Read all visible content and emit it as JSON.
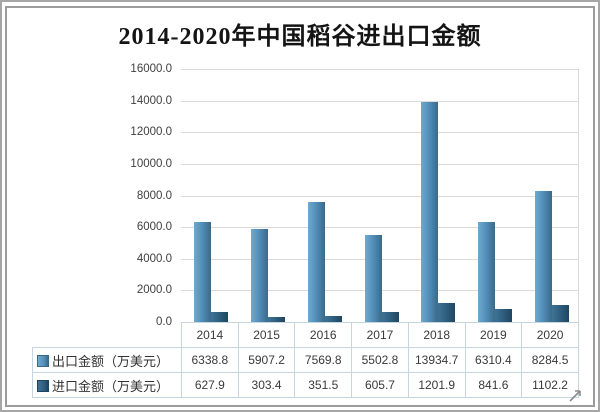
{
  "chart_data": {
    "type": "bar",
    "title": "2014-2020年中国稻谷进出口金额",
    "categories": [
      "2014",
      "2015",
      "2016",
      "2017",
      "2018",
      "2019",
      "2020"
    ],
    "series": [
      {
        "name": "出口金额（万美元）",
        "values": [
          6338.8,
          5907.2,
          7569.8,
          5502.8,
          13934.7,
          6310.4,
          8284.5
        ],
        "color": "#5390ba",
        "color_light": "#6fa9cf",
        "color_dark": "#3a6a88"
      },
      {
        "name": "进口金额（万美元）",
        "values": [
          627.9,
          303.4,
          351.5,
          605.7,
          1201.9,
          841.6,
          1102.2
        ],
        "color": "#2f5f80",
        "color_light": "#3f7396",
        "color_dark": "#20465f"
      }
    ],
    "ylim": [
      0,
      16000
    ],
    "ytick_step": 2000,
    "ytick_labels": [
      "0.0",
      "2000.0",
      "4000.0",
      "6000.0",
      "8000.0",
      "10000.0",
      "12000.0",
      "14000.0",
      "16000.0"
    ],
    "grid": true,
    "legend_position": "data-table-left",
    "xlabel": "",
    "ylabel": ""
  },
  "colors": {
    "gridline": "#dadada",
    "table_border": "#c6d6e0",
    "frame_border": "#9c9c9c",
    "axis_text": "#404040",
    "title_text": "#141414"
  }
}
